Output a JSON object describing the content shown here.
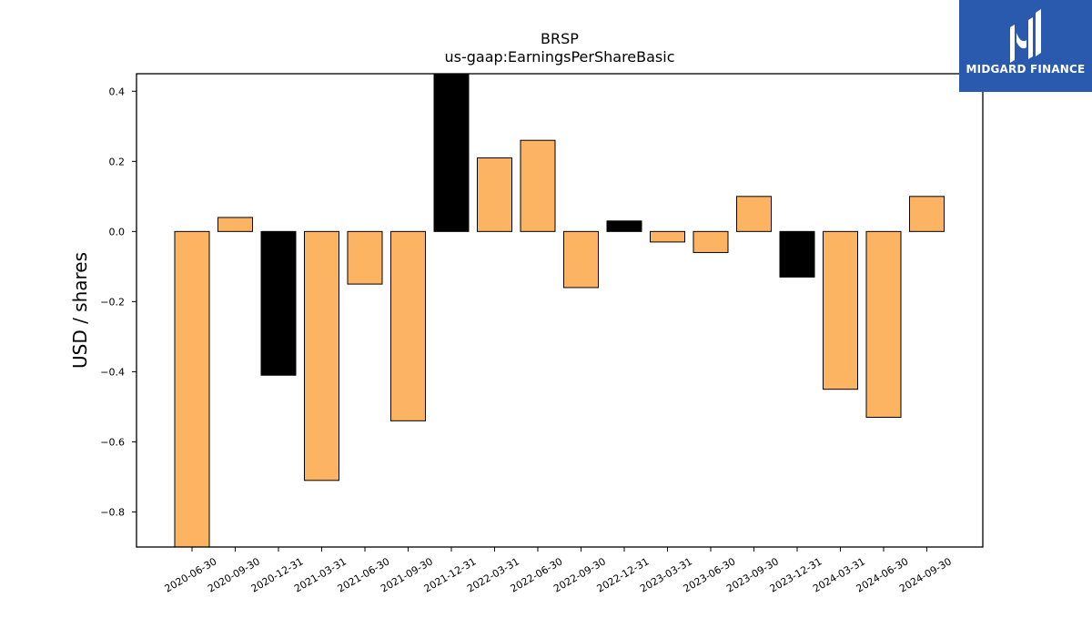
{
  "brand": {
    "name": "MIDGARD FINANCE",
    "logo_icon": "midgard-logo-icon",
    "color": "#2a5aad"
  },
  "chart_data": {
    "type": "bar",
    "title": "BRSP",
    "subtitle": "us-gaap:EarningsPerShareBasic",
    "xlabel": "",
    "ylabel": "USD / shares",
    "ylim": [
      -0.9,
      0.45
    ],
    "yticks": [
      "0.4",
      "0.2",
      "0.0",
      "−0.2",
      "−0.4",
      "−0.6",
      "−0.8"
    ],
    "ytick_values": [
      0.4,
      0.2,
      0.0,
      -0.2,
      -0.4,
      -0.6,
      -0.8
    ],
    "grid": false,
    "categories": [
      "2020-06-30",
      "2020-09-30",
      "2020-12-31",
      "2021-03-31",
      "2021-06-30",
      "2021-09-30",
      "2021-12-31",
      "2022-03-31",
      "2022-06-30",
      "2022-09-30",
      "2022-12-31",
      "2023-03-31",
      "2023-06-30",
      "2023-09-30",
      "2023-12-31",
      "2024-03-31",
      "2024-06-30",
      "2024-09-30"
    ],
    "values": [
      -0.9,
      0.04,
      -0.41,
      -0.71,
      -0.15,
      -0.54,
      0.45,
      0.21,
      0.26,
      -0.16,
      0.03,
      -0.03,
      -0.06,
      0.1,
      -0.13,
      -0.45,
      -0.53,
      0.1
    ],
    "bar_colors": [
      "orange",
      "orange",
      "black",
      "orange",
      "orange",
      "orange",
      "black",
      "orange",
      "orange",
      "orange",
      "black",
      "orange",
      "orange",
      "orange",
      "black",
      "orange",
      "orange",
      "orange"
    ],
    "colors": {
      "orange": "#fdb462",
      "black": "#000000",
      "edge": "#000000"
    }
  }
}
